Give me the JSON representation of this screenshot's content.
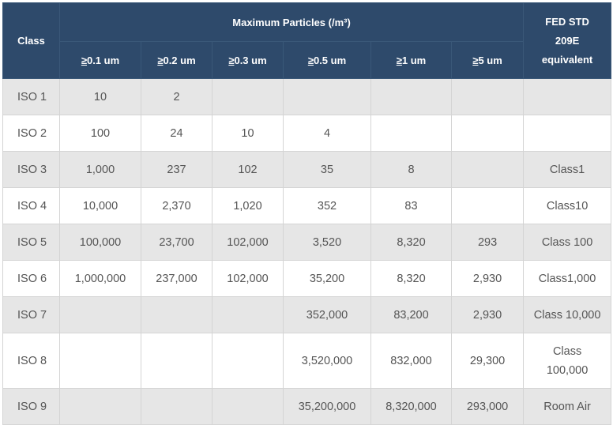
{
  "table": {
    "header": {
      "class": "Class",
      "max_particles": "Maximum  Particles (/m³)",
      "fed_line1": "FED STD",
      "fed_line2": "209E",
      "fed_line3": "equivalent",
      "sizes": [
        {
          "sym": "≥",
          "label": "0.1 um"
        },
        {
          "sym": "≥",
          "label": "0.2 um"
        },
        {
          "sym": "≥",
          "label": "0.3 um"
        },
        {
          "sym": "≥",
          "label": "0.5 um"
        },
        {
          "sym": "≥",
          "label": "1 um"
        },
        {
          "sym": "≥",
          "label": "5 um"
        }
      ]
    },
    "rows": [
      {
        "cls": "ISO 1",
        "v": [
          "10",
          "2",
          "",
          "",
          "",
          ""
        ],
        "fed": ""
      },
      {
        "cls": "ISO 2",
        "v": [
          "100",
          "24",
          "10",
          "4",
          "",
          ""
        ],
        "fed": ""
      },
      {
        "cls": "ISO 3",
        "v": [
          "1,000",
          "237",
          "102",
          "35",
          "8",
          ""
        ],
        "fed": "Class1"
      },
      {
        "cls": "ISO 4",
        "v": [
          "10,000",
          "2,370",
          "1,020",
          "352",
          "83",
          ""
        ],
        "fed": "Class10"
      },
      {
        "cls": "ISO 5",
        "v": [
          "100,000",
          "23,700",
          "102,000",
          "3,520",
          "8,320",
          "293"
        ],
        "fed": "Class 100"
      },
      {
        "cls": "ISO 6",
        "v": [
          "1,000,000",
          "237,000",
          "102,000",
          "35,200",
          "8,320",
          "2,930"
        ],
        "fed": "Class1,000"
      },
      {
        "cls": "ISO 7",
        "v": [
          "",
          "",
          "",
          "352,000",
          "83,200",
          "2,930"
        ],
        "fed": "Class 10,000"
      },
      {
        "cls": "ISO 8",
        "v": [
          "",
          "",
          "",
          "3,520,000",
          "832,000",
          "29,300"
        ],
        "fed_line1": "Class",
        "fed_line2": "100,000"
      },
      {
        "cls": "ISO 9",
        "v": [
          "",
          "",
          "",
          "35,200,000",
          "8,320,000",
          "293,000"
        ],
        "fed": "Room Air"
      }
    ]
  }
}
